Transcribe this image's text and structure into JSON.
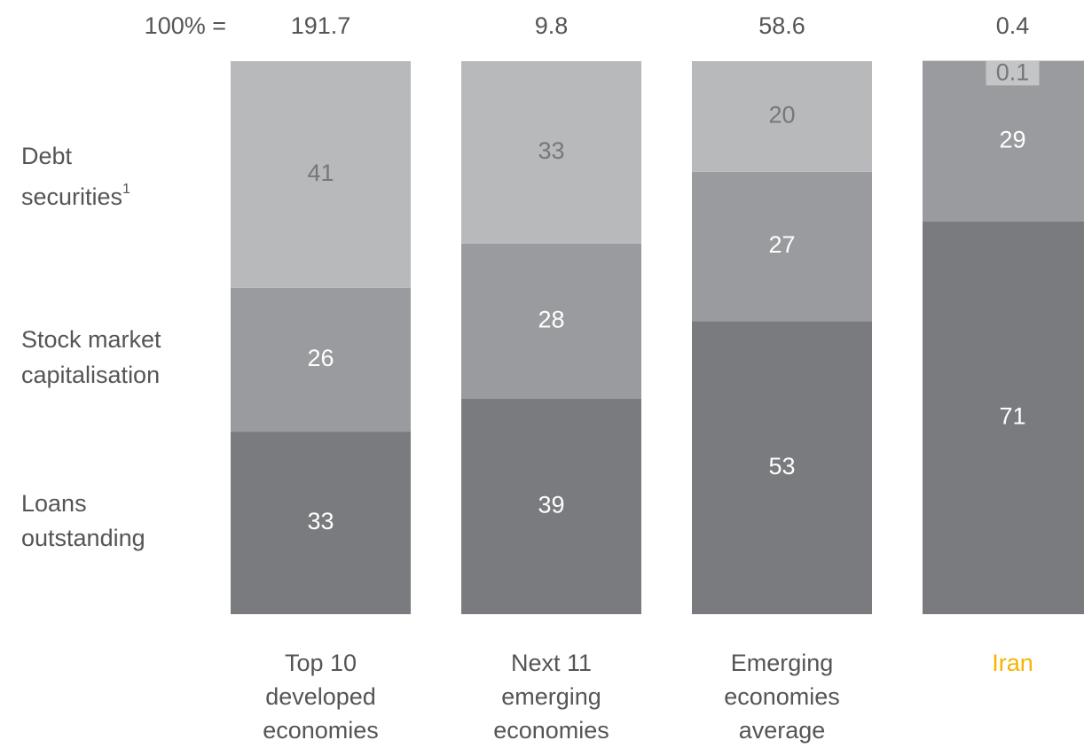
{
  "chart_data": {
    "type": "stacked_bar_100",
    "total_label": "100% =",
    "totals": [
      "191.7",
      "9.8",
      "58.6",
      "0.4"
    ],
    "categories": [
      [
        "Top 10",
        "developed",
        "economies"
      ],
      [
        "Next 11",
        "emerging",
        "economies"
      ],
      [
        "Emerging",
        "economies",
        "average"
      ],
      [
        "Iran"
      ]
    ],
    "category_colors": [
      "#555555",
      "#555555",
      "#555555",
      "#f5b400"
    ],
    "ylim": [
      0,
      100
    ],
    "series": [
      {
        "name": [
          "Loans",
          "outstanding"
        ],
        "color": "#7a7b7f",
        "label_color": "#ffffff",
        "values": [
          33,
          39,
          53,
          71
        ]
      },
      {
        "name": [
          "Stock market",
          "capitalisation"
        ],
        "color": "#9a9b9e",
        "label_color": "#ffffff",
        "values": [
          26,
          28,
          27,
          29
        ]
      },
      {
        "name": [
          "Debt",
          "securities"
        ],
        "footnote_mark": "1",
        "color": "#b8b9bb",
        "label_color": "#777777",
        "values": [
          41,
          33,
          20,
          0.1
        ]
      }
    ]
  }
}
